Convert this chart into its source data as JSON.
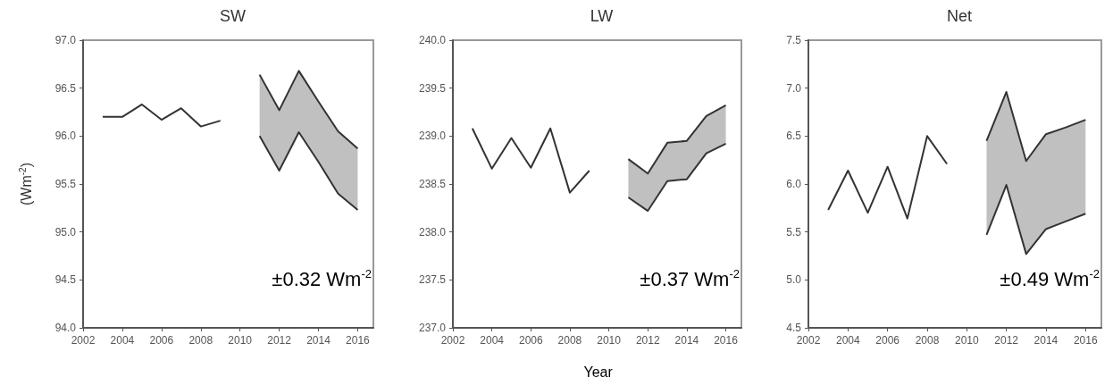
{
  "chart_data": [
    {
      "type": "line",
      "title": "SW",
      "ylabel": "(Wm$^{-2}$)",
      "xlim": [
        2002,
        2016.8
      ],
      "xticks": [
        2002,
        2004,
        2006,
        2008,
        2010,
        2012,
        2014,
        2016
      ],
      "ylim": [
        94,
        97
      ],
      "yticks": [
        {
          "value": 94,
          "label": "94.0"
        },
        {
          "value": 94.5,
          "label": "94.5"
        },
        {
          "value": 95,
          "label": "95.0"
        },
        {
          "value": 95.5,
          "label": "95.5"
        },
        {
          "value": 96,
          "label": "96.0"
        },
        {
          "value": 96.5,
          "label": "96.5"
        },
        {
          "value": 97,
          "label": "97.0"
        }
      ],
      "grid": false,
      "annotations": [
        "±0.32 Wm$^{-2}$"
      ],
      "series": [
        {
          "color": "#333333",
          "x": [
            2003,
            2004,
            2005,
            2006,
            2007,
            2008,
            2009
          ],
          "values": [
            96.2,
            96.2,
            96.33,
            96.17,
            96.29,
            96.1,
            96.16
          ]
        },
        {
          "color": "#333333",
          "x": [
            2011,
            2012,
            2013,
            2014,
            2015,
            2016
          ],
          "values": [
            96.64,
            96.27,
            96.68,
            96.36,
            96.05,
            95.87
          ],
          "upper": [
            96.64,
            96.27,
            96.68,
            96.36,
            96.05,
            95.87
          ],
          "lower": [
            96.0,
            95.64,
            96.04,
            95.73,
            95.4,
            95.23
          ]
        },
        {
          "color": "#333333",
          "x": [
            2011,
            2012,
            2013,
            2014,
            2015,
            2016
          ],
          "values": [
            96.0,
            95.64,
            96.04,
            95.73,
            95.4,
            95.23
          ]
        }
      ]
    },
    {
      "type": "line",
      "title": "LW",
      "xlabel": "Year",
      "xlim": [
        2002,
        2016.8
      ],
      "xticks": [
        2002,
        2004,
        2006,
        2008,
        2010,
        2012,
        2014,
        2016
      ],
      "ylim": [
        237,
        240
      ],
      "yticks": [
        {
          "value": 237,
          "label": "237.0"
        },
        {
          "value": 237.5,
          "label": "237.5"
        },
        {
          "value": 238,
          "label": "238.0"
        },
        {
          "value": 238.5,
          "label": "238.5"
        },
        {
          "value": 239,
          "label": "239.0"
        },
        {
          "value": 239.5,
          "label": "239.5"
        },
        {
          "value": 240,
          "label": "240.0"
        }
      ],
      "grid": false,
      "annotations": [
        "±0.37 Wm$^{-2}$"
      ],
      "series": [
        {
          "color": "#333333",
          "x": [
            2003,
            2004,
            2005,
            2006,
            2007,
            2008,
            2009
          ],
          "values": [
            239.08,
            238.66,
            238.98,
            238.67,
            239.08,
            238.41,
            238.64
          ]
        },
        {
          "color": "#333333",
          "x": [
            2011,
            2012,
            2013,
            2014,
            2015,
            2016
          ],
          "values": [
            238.76,
            238.61,
            238.93,
            238.95,
            239.21,
            239.32
          ],
          "upper": [
            238.76,
            238.61,
            238.93,
            238.95,
            239.21,
            239.32
          ],
          "lower": [
            238.36,
            238.22,
            238.53,
            238.55,
            238.82,
            238.92
          ]
        },
        {
          "color": "#333333",
          "x": [
            2011,
            2012,
            2013,
            2014,
            2015,
            2016
          ],
          "values": [
            238.36,
            238.22,
            238.53,
            238.55,
            238.82,
            238.92
          ]
        }
      ]
    },
    {
      "type": "line",
      "title": "Net",
      "xlim": [
        2002,
        2016.8
      ],
      "xticks": [
        2002,
        2004,
        2006,
        2008,
        2010,
        2012,
        2014,
        2016
      ],
      "ylim": [
        4.5,
        7.5
      ],
      "yticks": [
        4.5,
        {
          "value": 5,
          "label": "5.0"
        },
        5.5,
        {
          "value": 6,
          "label": "6.0"
        },
        6.5,
        {
          "value": 7,
          "label": "7.0"
        },
        7.5
      ],
      "grid": false,
      "annotations": [
        "±0.49 Wm$^{-2}$"
      ],
      "series": [
        {
          "color": "#333333",
          "x": [
            2003,
            2004,
            2005,
            2006,
            2007,
            2008,
            2009
          ],
          "values": [
            5.73,
            6.14,
            5.7,
            6.18,
            5.64,
            6.5,
            6.21
          ]
        },
        {
          "color": "#333333",
          "x": [
            2011,
            2012,
            2013,
            2014,
            2015,
            2016
          ],
          "values": [
            6.45,
            6.96,
            6.24,
            6.52,
            6.59,
            6.67
          ],
          "upper": [
            6.45,
            6.96,
            6.24,
            6.52,
            6.59,
            6.67
          ],
          "lower": [
            5.47,
            5.99,
            5.27,
            5.53,
            5.61,
            5.69
          ]
        },
        {
          "color": "#333333",
          "x": [
            2011,
            2012,
            2013,
            2014,
            2015,
            2016
          ],
          "values": [
            5.47,
            5.99,
            5.27,
            5.53,
            5.61,
            5.69
          ]
        }
      ]
    }
  ]
}
